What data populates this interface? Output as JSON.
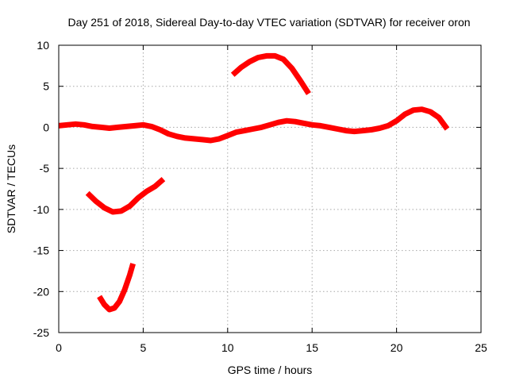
{
  "chart_data": {
    "type": "line",
    "title": "Day 251 of 2018, Sidereal Day-to-day VTEC variation (SDTVAR) for receiver oron",
    "xlabel": "GPS time / hours",
    "ylabel": "SDTVAR / TECUs",
    "xlim": [
      0,
      25
    ],
    "ylim": [
      -25,
      10
    ],
    "xticks": [
      0,
      5,
      10,
      15,
      20,
      25
    ],
    "yticks": [
      -25,
      -20,
      -15,
      -10,
      -5,
      0,
      5,
      10
    ],
    "xtick_labels": [
      "0",
      "5",
      "10",
      "15",
      "20",
      "25"
    ],
    "ytick_labels": [
      "-25",
      "-20",
      "-15",
      "-10",
      "-5",
      "0",
      "5",
      "10"
    ],
    "grid": true,
    "series_color": "#ff0000",
    "series": [
      {
        "name": "arc-main",
        "x": [
          0,
          0.5,
          1.0,
          1.5,
          2.0,
          2.5,
          3.0,
          3.5,
          4.0,
          4.5,
          5.0,
          5.5,
          6.0,
          6.5,
          7.0,
          7.5,
          8.0,
          8.5,
          9.0,
          9.5,
          10.0,
          10.5,
          11.0,
          11.5,
          12.0,
          12.5,
          13.0,
          13.5,
          14.0,
          14.5,
          15.0,
          15.5,
          16.0,
          16.5,
          17.0,
          17.5,
          18.0,
          18.5,
          19.0,
          19.5,
          20.0,
          20.5,
          21.0,
          21.5,
          22.0,
          22.5,
          23.0
        ],
        "y": [
          0.2,
          0.3,
          0.4,
          0.3,
          0.1,
          0.0,
          -0.1,
          0.0,
          0.1,
          0.2,
          0.3,
          0.1,
          -0.3,
          -0.8,
          -1.1,
          -1.3,
          -1.4,
          -1.5,
          -1.6,
          -1.4,
          -1.0,
          -0.6,
          -0.4,
          -0.2,
          0.0,
          0.3,
          0.6,
          0.8,
          0.7,
          0.5,
          0.3,
          0.2,
          0.0,
          -0.2,
          -0.4,
          -0.5,
          -0.4,
          -0.3,
          -0.1,
          0.2,
          0.8,
          1.6,
          2.1,
          2.2,
          1.9,
          1.2,
          -0.2
        ]
      },
      {
        "name": "arc-upper",
        "x": [
          10.3,
          10.8,
          11.3,
          11.8,
          12.3,
          12.8,
          13.3,
          13.8,
          14.3,
          14.8
        ],
        "y": [
          6.4,
          7.3,
          8.0,
          8.5,
          8.7,
          8.7,
          8.3,
          7.2,
          5.7,
          4.1
        ]
      },
      {
        "name": "arc-lower-1",
        "x": [
          1.7,
          2.2,
          2.7,
          3.2,
          3.7,
          4.2,
          4.7,
          5.2,
          5.7,
          6.2
        ],
        "y": [
          -8.0,
          -9.0,
          -9.8,
          -10.3,
          -10.2,
          -9.6,
          -8.6,
          -7.8,
          -7.2,
          -6.3
        ]
      },
      {
        "name": "arc-lower-2",
        "x": [
          2.4,
          2.7,
          3.0,
          3.3,
          3.6,
          3.9,
          4.2,
          4.4
        ],
        "y": [
          -20.6,
          -21.6,
          -22.2,
          -22.0,
          -21.2,
          -19.8,
          -18.0,
          -16.6
        ]
      }
    ]
  }
}
